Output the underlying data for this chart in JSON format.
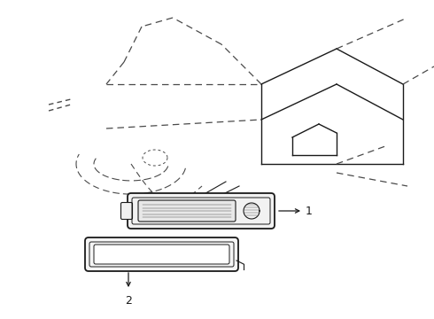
{
  "background_color": "#ffffff",
  "line_color": "#1a1a1a",
  "dashed_color": "#4a4a4a",
  "label1": "1",
  "label2": "2",
  "fig_width": 4.9,
  "fig_height": 3.6,
  "dpi": 100
}
